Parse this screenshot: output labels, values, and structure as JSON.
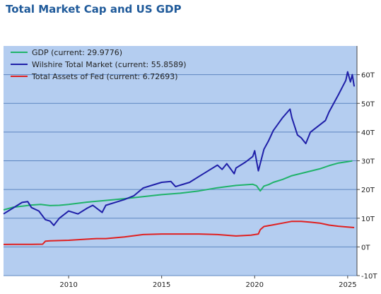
{
  "chart_data": {
    "type": "line",
    "title": "Total Market Cap and US GDP",
    "xlabel": "",
    "ylabel": "",
    "xlim": [
      2006.5,
      2025.5
    ],
    "ylim": [
      -10,
      70
    ],
    "x_ticks": [
      2010,
      2015,
      2020,
      2025
    ],
    "y_ticks": [
      -10,
      0,
      10,
      20,
      30,
      40,
      50,
      60
    ],
    "y_tick_labels": [
      "-10T",
      "0T",
      "10T",
      "20T",
      "30T",
      "40T",
      "50T",
      "60T"
    ],
    "grid": "horizontal",
    "y_axis_side": "right",
    "legend_position": "top-left",
    "background": "#b4cdf0",
    "series": [
      {
        "name": "GDP (current: 29.9776)",
        "color": "#20b36a",
        "x": [
          2006.5,
          2007,
          2007.5,
          2008,
          2008.5,
          2009,
          2009.5,
          2010,
          2011,
          2012,
          2013,
          2014,
          2015,
          2016,
          2017,
          2018,
          2019,
          2019.9,
          2020.1,
          2020.3,
          2020.5,
          2020.75,
          2021,
          2021.5,
          2022,
          2022.5,
          2023,
          2023.5,
          2024,
          2024.5,
          2025,
          2025.25
        ],
        "y": [
          12.9,
          13.8,
          14.2,
          14.6,
          14.8,
          14.4,
          14.5,
          14.8,
          15.6,
          16.2,
          16.8,
          17.5,
          18.2,
          18.7,
          19.5,
          20.6,
          21.4,
          21.8,
          21.3,
          19.5,
          21.2,
          21.7,
          22.5,
          23.5,
          24.8,
          25.6,
          26.4,
          27.2,
          28.3,
          29.2,
          29.7,
          29.98
        ]
      },
      {
        "name": "Wilshire Total Market (current: 55.8589)",
        "color": "#1f1fa8",
        "x": [
          2006.5,
          2007,
          2007.5,
          2007.8,
          2008,
          2008.4,
          2008.75,
          2009,
          2009.2,
          2009.5,
          2010,
          2010.5,
          2011,
          2011.3,
          2011.8,
          2012,
          2012.5,
          2013,
          2013.5,
          2014,
          2014.5,
          2015,
          2015.5,
          2015.75,
          2016,
          2016.5,
          2017,
          2017.5,
          2018,
          2018.25,
          2018.5,
          2018.9,
          2019,
          2019.5,
          2019.9,
          2020,
          2020.2,
          2020.5,
          2020.75,
          2021,
          2021.5,
          2021.9,
          2022,
          2022.3,
          2022.5,
          2022.75,
          2023,
          2023.5,
          2023.8,
          2024,
          2024.5,
          2024.9,
          2025,
          2025.15,
          2025.25,
          2025.35
        ],
        "y": [
          11.5,
          13.5,
          15.5,
          15.8,
          13.7,
          12.5,
          9.5,
          9.0,
          7.5,
          10.0,
          12.5,
          11.5,
          13.5,
          14.5,
          12.0,
          14.5,
          15.5,
          16.5,
          17.8,
          20.5,
          21.5,
          22.5,
          22.8,
          21.0,
          21.5,
          22.5,
          24.5,
          26.5,
          28.5,
          27.0,
          29.0,
          25.5,
          27.5,
          29.5,
          31.5,
          33.5,
          26.5,
          34.0,
          37.0,
          40.5,
          45.0,
          48.0,
          45.0,
          39.0,
          38.0,
          36.0,
          40.0,
          42.5,
          44.0,
          47.0,
          53.0,
          58.0,
          61.0,
          57.5,
          60.0,
          55.86
        ]
      },
      {
        "name": "Total Assets of Fed (current: 6.72693)",
        "color": "#e02020",
        "x": [
          2006.5,
          2007,
          2007.5,
          2008,
          2008.6,
          2008.75,
          2009,
          2009.5,
          2010,
          2011,
          2011.5,
          2012,
          2013,
          2014,
          2015,
          2016,
          2017,
          2018,
          2019,
          2019.8,
          2020.2,
          2020.3,
          2020.5,
          2021,
          2021.5,
          2022,
          2022.5,
          2023,
          2023.5,
          2024,
          2024.5,
          2025,
          2025.35
        ],
        "y": [
          0.85,
          0.88,
          0.88,
          0.9,
          0.95,
          2.0,
          2.1,
          2.2,
          2.3,
          2.7,
          2.9,
          2.9,
          3.5,
          4.3,
          4.5,
          4.5,
          4.5,
          4.3,
          3.8,
          4.1,
          4.5,
          6.0,
          7.1,
          7.7,
          8.3,
          8.9,
          8.9,
          8.6,
          8.3,
          7.6,
          7.2,
          6.9,
          6.73
        ]
      }
    ]
  }
}
